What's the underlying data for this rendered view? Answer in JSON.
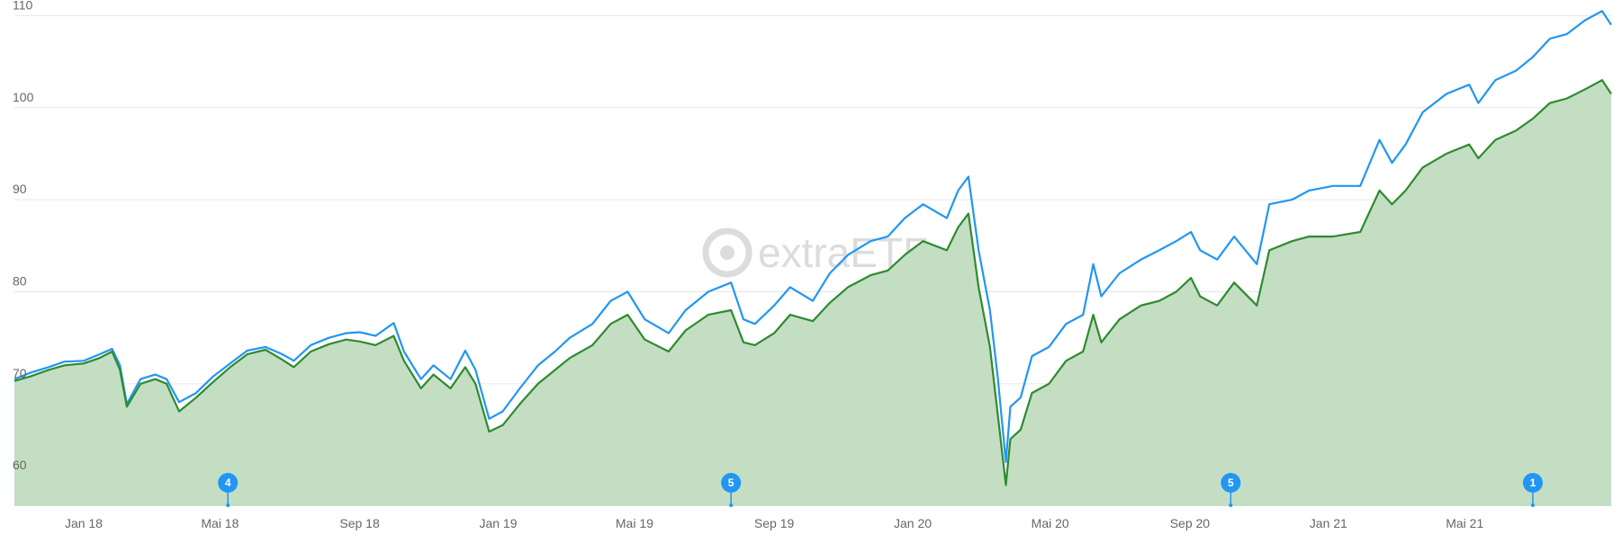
{
  "watermark": {
    "text": "extraETF"
  },
  "colors": {
    "series_a": "#2196f3",
    "series_b": "#2e8b2e",
    "area_fill": "#c4dec4",
    "flag": "#2196f3"
  },
  "chart_data": {
    "type": "line",
    "xlim": [
      "2017-11-01",
      "2021-09-07"
    ],
    "ylim": [
      56.7,
      111.7
    ],
    "grid": true,
    "legend": "none",
    "y_ticks": [
      60,
      70,
      80,
      90,
      100,
      110
    ],
    "x_ticks": [
      {
        "date": "2018-01-01",
        "label": "Jan 18"
      },
      {
        "date": "2018-05-01",
        "label": "Mai 18"
      },
      {
        "date": "2018-09-01",
        "label": "Sep 18"
      },
      {
        "date": "2019-01-01",
        "label": "Jan 19"
      },
      {
        "date": "2019-05-01",
        "label": "Mai 19"
      },
      {
        "date": "2019-09-01",
        "label": "Sep 19"
      },
      {
        "date": "2020-01-01",
        "label": "Jan 20"
      },
      {
        "date": "2020-05-01",
        "label": "Mai 20"
      },
      {
        "date": "2020-09-01",
        "label": "Sep 20"
      },
      {
        "date": "2021-01-01",
        "label": "Jan 21"
      },
      {
        "date": "2021-05-01",
        "label": "Mai 21"
      }
    ],
    "series": [
      {
        "color": "#2196f3",
        "points": [
          [
            "2017-11-01",
            70.5
          ],
          [
            "2017-11-15",
            71.2
          ],
          [
            "2017-12-01",
            71.8
          ],
          [
            "2017-12-15",
            72.4
          ],
          [
            "2018-01-01",
            72.5
          ],
          [
            "2018-01-15",
            73.2
          ],
          [
            "2018-01-26",
            73.8
          ],
          [
            "2018-02-02",
            72.0
          ],
          [
            "2018-02-08",
            67.8
          ],
          [
            "2018-02-20",
            70.5
          ],
          [
            "2018-03-05",
            71.0
          ],
          [
            "2018-03-15",
            70.5
          ],
          [
            "2018-03-26",
            68.0
          ],
          [
            "2018-04-10",
            69.0
          ],
          [
            "2018-04-25",
            70.8
          ],
          [
            "2018-05-10",
            72.2
          ],
          [
            "2018-05-25",
            73.6
          ],
          [
            "2018-06-10",
            74.0
          ],
          [
            "2018-06-25",
            73.2
          ],
          [
            "2018-07-05",
            72.5
          ],
          [
            "2018-07-20",
            74.2
          ],
          [
            "2018-08-05",
            75.0
          ],
          [
            "2018-08-20",
            75.5
          ],
          [
            "2018-09-01",
            75.6
          ],
          [
            "2018-09-15",
            75.2
          ],
          [
            "2018-10-01",
            76.6
          ],
          [
            "2018-10-10",
            73.5
          ],
          [
            "2018-10-25",
            70.5
          ],
          [
            "2018-11-05",
            72.0
          ],
          [
            "2018-11-20",
            70.5
          ],
          [
            "2018-12-03",
            73.6
          ],
          [
            "2018-12-12",
            71.5
          ],
          [
            "2018-12-24",
            66.2
          ],
          [
            "2019-01-05",
            67.0
          ],
          [
            "2019-01-20",
            69.5
          ],
          [
            "2019-02-05",
            72.0
          ],
          [
            "2019-02-20",
            73.5
          ],
          [
            "2019-03-05",
            75.0
          ],
          [
            "2019-03-25",
            76.5
          ],
          [
            "2019-04-10",
            79.0
          ],
          [
            "2019-04-25",
            80.0
          ],
          [
            "2019-05-10",
            77.0
          ],
          [
            "2019-05-31",
            75.5
          ],
          [
            "2019-06-15",
            78.0
          ],
          [
            "2019-07-05",
            80.0
          ],
          [
            "2019-07-25",
            81.0
          ],
          [
            "2019-08-05",
            77.0
          ],
          [
            "2019-08-15",
            76.5
          ],
          [
            "2019-09-01",
            78.5
          ],
          [
            "2019-09-15",
            80.5
          ],
          [
            "2019-10-05",
            79.0
          ],
          [
            "2019-10-20",
            82.0
          ],
          [
            "2019-11-05",
            84.0
          ],
          [
            "2019-11-25",
            85.5
          ],
          [
            "2019-12-10",
            86.0
          ],
          [
            "2019-12-25",
            88.0
          ],
          [
            "2020-01-10",
            89.5
          ],
          [
            "2020-01-31",
            88.0
          ],
          [
            "2020-02-10",
            91.0
          ],
          [
            "2020-02-19",
            92.5
          ],
          [
            "2020-02-28",
            84.5
          ],
          [
            "2020-03-09",
            78.0
          ],
          [
            "2020-03-16",
            70.5
          ],
          [
            "2020-03-23",
            61.5
          ],
          [
            "2020-03-27",
            67.5
          ],
          [
            "2020-04-05",
            68.5
          ],
          [
            "2020-04-15",
            73.0
          ],
          [
            "2020-04-30",
            74.0
          ],
          [
            "2020-05-15",
            76.5
          ],
          [
            "2020-05-30",
            77.5
          ],
          [
            "2020-06-08",
            83.0
          ],
          [
            "2020-06-15",
            79.5
          ],
          [
            "2020-07-01",
            82.0
          ],
          [
            "2020-07-20",
            83.5
          ],
          [
            "2020-08-05",
            84.5
          ],
          [
            "2020-08-20",
            85.5
          ],
          [
            "2020-09-02",
            86.5
          ],
          [
            "2020-09-10",
            84.5
          ],
          [
            "2020-09-25",
            83.5
          ],
          [
            "2020-10-10",
            86.0
          ],
          [
            "2020-10-30",
            83.0
          ],
          [
            "2020-11-10",
            89.5
          ],
          [
            "2020-11-30",
            90.0
          ],
          [
            "2020-12-15",
            91.0
          ],
          [
            "2021-01-05",
            91.5
          ],
          [
            "2021-01-29",
            91.5
          ],
          [
            "2021-02-15",
            96.5
          ],
          [
            "2021-02-26",
            94.0
          ],
          [
            "2021-03-10",
            96.0
          ],
          [
            "2021-03-25",
            99.5
          ],
          [
            "2021-04-15",
            101.5
          ],
          [
            "2021-05-05",
            102.5
          ],
          [
            "2021-05-13",
            100.5
          ],
          [
            "2021-05-28",
            103.0
          ],
          [
            "2021-06-15",
            104.0
          ],
          [
            "2021-06-30",
            105.5
          ],
          [
            "2021-07-15",
            107.5
          ],
          [
            "2021-07-30",
            108.0
          ],
          [
            "2021-08-15",
            109.5
          ],
          [
            "2021-08-30",
            110.5
          ],
          [
            "2021-09-07",
            109.0
          ]
        ]
      },
      {
        "color": "#2e8b2e",
        "points": [
          [
            "2017-11-01",
            70.3
          ],
          [
            "2017-11-15",
            70.8
          ],
          [
            "2017-12-01",
            71.5
          ],
          [
            "2017-12-15",
            72.0
          ],
          [
            "2018-01-01",
            72.2
          ],
          [
            "2018-01-15",
            72.8
          ],
          [
            "2018-01-26",
            73.5
          ],
          [
            "2018-02-02",
            71.5
          ],
          [
            "2018-02-08",
            67.5
          ],
          [
            "2018-02-20",
            70.0
          ],
          [
            "2018-03-05",
            70.5
          ],
          [
            "2018-03-15",
            70.0
          ],
          [
            "2018-03-26",
            67.0
          ],
          [
            "2018-04-10",
            68.5
          ],
          [
            "2018-04-25",
            70.2
          ],
          [
            "2018-05-10",
            71.8
          ],
          [
            "2018-05-25",
            73.2
          ],
          [
            "2018-06-10",
            73.7
          ],
          [
            "2018-06-25",
            72.6
          ],
          [
            "2018-07-05",
            71.8
          ],
          [
            "2018-07-20",
            73.5
          ],
          [
            "2018-08-05",
            74.3
          ],
          [
            "2018-08-20",
            74.8
          ],
          [
            "2018-09-01",
            74.6
          ],
          [
            "2018-09-15",
            74.2
          ],
          [
            "2018-10-01",
            75.2
          ],
          [
            "2018-10-10",
            72.5
          ],
          [
            "2018-10-25",
            69.5
          ],
          [
            "2018-11-05",
            71.0
          ],
          [
            "2018-11-20",
            69.5
          ],
          [
            "2018-12-03",
            71.8
          ],
          [
            "2018-12-12",
            70.0
          ],
          [
            "2018-12-24",
            64.8
          ],
          [
            "2019-01-05",
            65.5
          ],
          [
            "2019-01-20",
            67.8
          ],
          [
            "2019-02-05",
            70.0
          ],
          [
            "2019-02-20",
            71.5
          ],
          [
            "2019-03-05",
            72.8
          ],
          [
            "2019-03-25",
            74.2
          ],
          [
            "2019-04-10",
            76.5
          ],
          [
            "2019-04-25",
            77.5
          ],
          [
            "2019-05-10",
            74.8
          ],
          [
            "2019-05-31",
            73.5
          ],
          [
            "2019-06-15",
            75.8
          ],
          [
            "2019-07-05",
            77.5
          ],
          [
            "2019-07-25",
            78.0
          ],
          [
            "2019-08-05",
            74.5
          ],
          [
            "2019-08-15",
            74.2
          ],
          [
            "2019-09-01",
            75.5
          ],
          [
            "2019-09-15",
            77.5
          ],
          [
            "2019-10-05",
            76.8
          ],
          [
            "2019-10-20",
            78.8
          ],
          [
            "2019-11-05",
            80.5
          ],
          [
            "2019-11-25",
            81.8
          ],
          [
            "2019-12-10",
            82.3
          ],
          [
            "2019-12-25",
            84.0
          ],
          [
            "2020-01-10",
            85.5
          ],
          [
            "2020-01-31",
            84.5
          ],
          [
            "2020-02-10",
            87.0
          ],
          [
            "2020-02-19",
            88.5
          ],
          [
            "2020-02-28",
            80.5
          ],
          [
            "2020-03-09",
            74.0
          ],
          [
            "2020-03-16",
            66.5
          ],
          [
            "2020-03-23",
            59.0
          ],
          [
            "2020-03-27",
            64.0
          ],
          [
            "2020-04-05",
            65.0
          ],
          [
            "2020-04-15",
            69.0
          ],
          [
            "2020-04-30",
            70.0
          ],
          [
            "2020-05-15",
            72.5
          ],
          [
            "2020-05-30",
            73.5
          ],
          [
            "2020-06-08",
            77.5
          ],
          [
            "2020-06-15",
            74.5
          ],
          [
            "2020-07-01",
            77.0
          ],
          [
            "2020-07-20",
            78.5
          ],
          [
            "2020-08-05",
            79.0
          ],
          [
            "2020-08-20",
            80.0
          ],
          [
            "2020-09-02",
            81.5
          ],
          [
            "2020-09-10",
            79.5
          ],
          [
            "2020-09-25",
            78.5
          ],
          [
            "2020-10-10",
            81.0
          ],
          [
            "2020-10-30",
            78.5
          ],
          [
            "2020-11-10",
            84.5
          ],
          [
            "2020-11-30",
            85.5
          ],
          [
            "2020-12-15",
            86.0
          ],
          [
            "2021-01-05",
            86.0
          ],
          [
            "2021-01-29",
            86.5
          ],
          [
            "2021-02-15",
            91.0
          ],
          [
            "2021-02-26",
            89.5
          ],
          [
            "2021-03-10",
            91.0
          ],
          [
            "2021-03-25",
            93.5
          ],
          [
            "2021-04-15",
            95.0
          ],
          [
            "2021-05-05",
            96.0
          ],
          [
            "2021-05-13",
            94.5
          ],
          [
            "2021-05-28",
            96.5
          ],
          [
            "2021-06-15",
            97.5
          ],
          [
            "2021-06-30",
            98.8
          ],
          [
            "2021-07-15",
            100.5
          ],
          [
            "2021-07-30",
            101.0
          ],
          [
            "2021-08-15",
            102.0
          ],
          [
            "2021-08-30",
            103.0
          ],
          [
            "2021-09-07",
            101.5
          ]
        ]
      }
    ],
    "event_markers": [
      {
        "date": "2018-05-08",
        "label": "4"
      },
      {
        "date": "2019-07-25",
        "label": "5"
      },
      {
        "date": "2020-10-07",
        "label": "5"
      },
      {
        "date": "2021-06-30",
        "label": "1"
      }
    ]
  }
}
